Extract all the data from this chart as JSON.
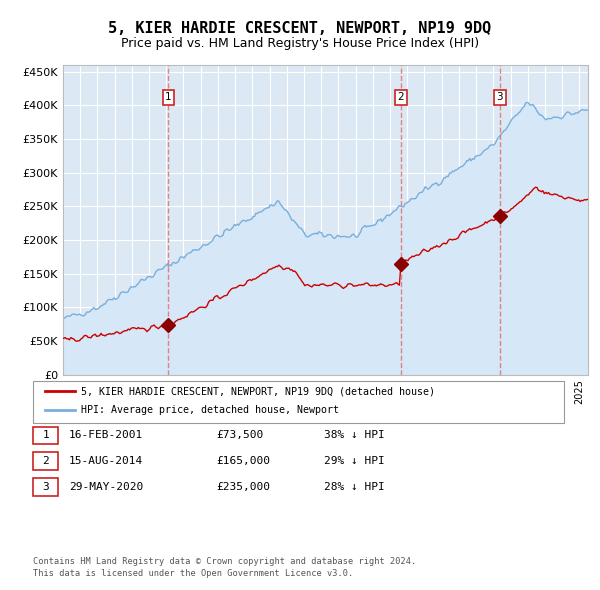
{
  "title": "5, KIER HARDIE CRESCENT, NEWPORT, NP19 9DQ",
  "subtitle": "Price paid vs. HM Land Registry's House Price Index (HPI)",
  "title_fontsize": 11,
  "subtitle_fontsize": 9,
  "hpi_color": "#7aafdc",
  "hpi_fill_color": "#d6e8f7",
  "price_color": "#cc0000",
  "marker_color": "#8b0000",
  "vline_color": "#e07070",
  "background_color": "#ffffff",
  "plot_bg_color": "#dce9f5",
  "ylabel_fontsize": 8,
  "xlabel_fontsize": 7,
  "legend_label_hpi": "HPI: Average price, detached house, Newport",
  "legend_label_price": "5, KIER HARDIE CRESCENT, NEWPORT, NP19 9DQ (detached house)",
  "sale_prices": [
    73500,
    165000,
    235000
  ],
  "sale_labels": [
    "1",
    "2",
    "3"
  ],
  "table_rows": [
    [
      "1",
      "16-FEB-2001",
      "£73,500",
      "38% ↓ HPI"
    ],
    [
      "2",
      "15-AUG-2014",
      "£165,000",
      "29% ↓ HPI"
    ],
    [
      "3",
      "29-MAY-2020",
      "£235,000",
      "28% ↓ HPI"
    ]
  ],
  "footer": "Contains HM Land Registry data © Crown copyright and database right 2024.\nThis data is licensed under the Open Government Licence v3.0.",
  "ylim": [
    0,
    460000
  ],
  "yticks": [
    0,
    50000,
    100000,
    150000,
    200000,
    250000,
    300000,
    350000,
    400000,
    450000
  ],
  "ytick_labels": [
    "£0",
    "£50K",
    "£100K",
    "£150K",
    "£200K",
    "£250K",
    "£300K",
    "£350K",
    "£400K",
    "£450K"
  ],
  "year_start": 1995,
  "year_end": 2025
}
